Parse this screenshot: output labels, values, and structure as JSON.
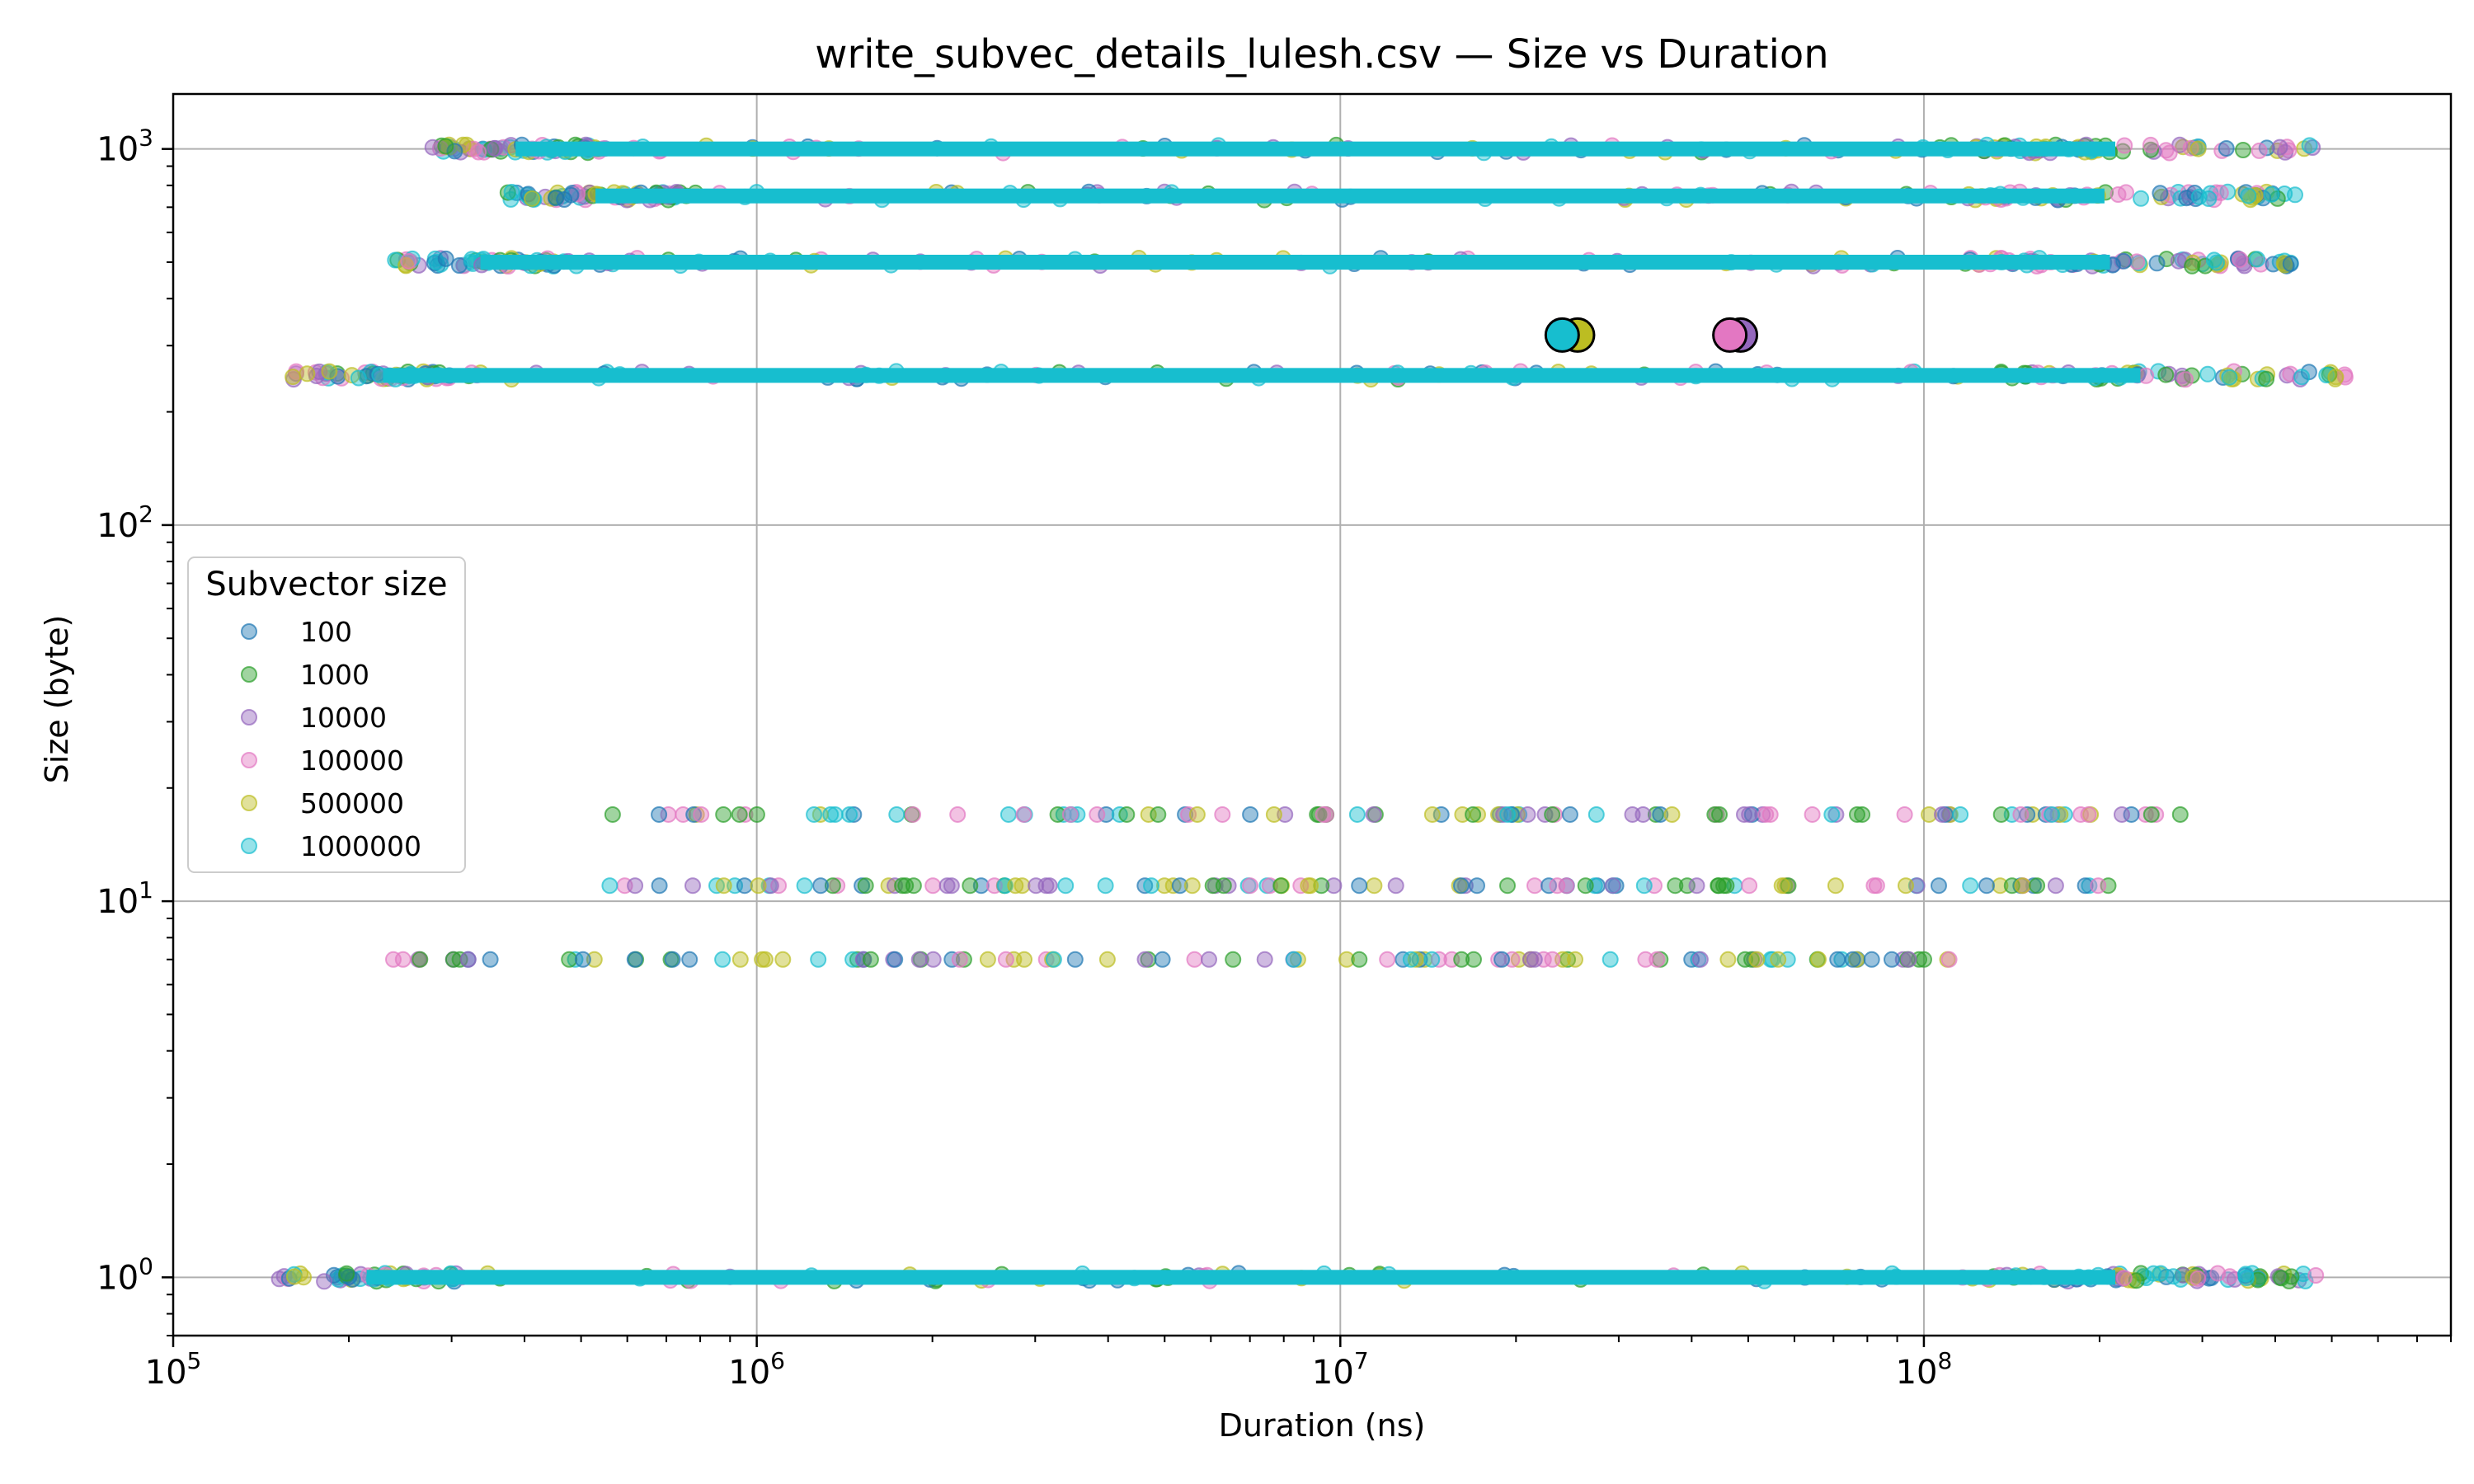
{
  "chart_data": {
    "type": "scatter",
    "title": "write_subvec_details_lulesh.csv — Size vs Duration",
    "xlabel": "Duration (ns)",
    "ylabel": "Size (byte)",
    "xscale": "log",
    "yscale": "log",
    "xlim": [
      100000,
      800000000
    ],
    "ylim": [
      0.7,
      1400
    ],
    "grid": true,
    "x_ticks": [
      {
        "base": "10",
        "exp": "5",
        "value": 100000
      },
      {
        "base": "10",
        "exp": "6",
        "value": 1000000
      },
      {
        "base": "10",
        "exp": "7",
        "value": 10000000
      },
      {
        "base": "10",
        "exp": "8",
        "value": 100000000
      }
    ],
    "y_ticks": [
      {
        "base": "10",
        "exp": "0",
        "value": 1
      },
      {
        "base": "10",
        "exp": "1",
        "value": 10
      },
      {
        "base": "10",
        "exp": "2",
        "value": 100
      },
      {
        "base": "10",
        "exp": "3",
        "value": 1000
      }
    ],
    "legend": {
      "title": "Subvector size",
      "placement": "center-left"
    },
    "series": [
      {
        "name": "100",
        "color": "#1f77b4"
      },
      {
        "name": "1000",
        "color": "#2ca02c"
      },
      {
        "name": "10000",
        "color": "#9467bd"
      },
      {
        "name": "100000",
        "color": "#e377c2"
      },
      {
        "name": "500000",
        "color": "#bcbd22"
      },
      {
        "name": "1000000",
        "color": "#17becf"
      }
    ],
    "bands": [
      {
        "y": 1000,
        "x_min": 270000,
        "x_max": 480000000,
        "density": "dense"
      },
      {
        "y": 750,
        "x_min": 370000,
        "x_max": 460000000,
        "density": "dense"
      },
      {
        "y": 500,
        "x_min": 235000,
        "x_max": 470000000,
        "density": "dense"
      },
      {
        "y": 250,
        "x_min": 160000,
        "x_max": 530000000,
        "density": "dense"
      },
      {
        "y": 17,
        "x_min": 400000,
        "x_max": 280000000,
        "density": "sparse"
      },
      {
        "y": 11,
        "x_min": 490000,
        "x_max": 215000000,
        "density": "sparse"
      },
      {
        "y": 7,
        "x_min": 225000,
        "x_max": 115000000,
        "density": "sparse"
      },
      {
        "y": 1,
        "x_min": 150000,
        "x_max": 480000000,
        "density": "dense"
      }
    ],
    "highlighted_points": [
      {
        "series": "500000",
        "x": 25500000,
        "y": 320
      },
      {
        "series": "1000000",
        "x": 24000000,
        "y": 320
      },
      {
        "series": "10000",
        "x": 48500000,
        "y": 320
      },
      {
        "series": "100000",
        "x": 46500000,
        "y": 320
      }
    ]
  }
}
